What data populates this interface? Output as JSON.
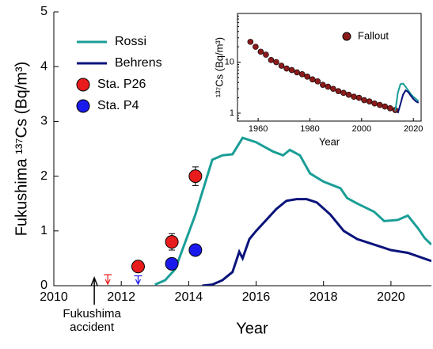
{
  "chart_data": [
    {
      "type": "line",
      "x_label": "Year",
      "y_label": "Fukushima ¹³⁷Cs (Bq/m³)",
      "xlim": [
        2010,
        2021.2
      ],
      "xticks": [
        2010,
        2012,
        2014,
        2016,
        2018,
        2020
      ],
      "ylim": [
        0,
        5
      ],
      "yticks": [
        0,
        1,
        2,
        3,
        4,
        5
      ],
      "annotation": {
        "lines": [
          "Fukushima",
          "accident"
        ],
        "x": 2011.2
      },
      "series": [
        {
          "name": "Rossi",
          "color": "#1a9e96",
          "x": [
            2013.0,
            2013.3,
            2013.6,
            2013.9,
            2014.2,
            2014.5,
            2014.7,
            2015.0,
            2015.3,
            2015.6,
            2016.0,
            2016.5,
            2016.8,
            2017.0,
            2017.3,
            2017.6,
            2018.0,
            2018.5,
            2018.7,
            2019.0,
            2019.5,
            2019.8,
            2020.2,
            2020.5,
            2020.8,
            2021.0,
            2021.2
          ],
          "values": [
            0.02,
            0.1,
            0.3,
            0.8,
            1.3,
            1.9,
            2.3,
            2.38,
            2.4,
            2.7,
            2.62,
            2.45,
            2.38,
            2.48,
            2.38,
            2.05,
            1.9,
            1.78,
            1.6,
            1.5,
            1.35,
            1.18,
            1.2,
            1.28,
            1.05,
            0.87,
            0.75
          ]
        },
        {
          "name": "Behrens",
          "color": "#0a137a",
          "x": [
            2014.4,
            2014.7,
            2015.0,
            2015.3,
            2015.5,
            2015.6,
            2015.8,
            2016.0,
            2016.3,
            2016.6,
            2016.9,
            2017.2,
            2017.5,
            2017.8,
            2018.2,
            2018.6,
            2019.0,
            2019.5,
            2020.0,
            2020.5,
            2021.2
          ],
          "values": [
            0,
            0.02,
            0.1,
            0.25,
            0.62,
            0.5,
            0.85,
            1.0,
            1.2,
            1.4,
            1.55,
            1.58,
            1.58,
            1.52,
            1.3,
            1.0,
            0.85,
            0.75,
            0.65,
            0.6,
            0.45
          ]
        },
        {
          "name": "Sta. P26",
          "color": "#e81c1c",
          "marker": true,
          "x": [
            2012.5,
            2013.5,
            2014.2
          ],
          "values": [
            0.35,
            0.8,
            2.0
          ],
          "errors": [
            0.03,
            0.15,
            0.17
          ],
          "upper_limit": {
            "x": 2011.6,
            "value": 0.2
          }
        },
        {
          "name": "Sta. P4",
          "color": "#1a1aee",
          "marker": true,
          "x": [
            2013.5,
            2014.2
          ],
          "values": [
            0.4,
            0.65
          ],
          "errors": [
            0.05,
            0.1
          ],
          "upper_limit": {
            "x": 2012.5,
            "value": 0.18
          }
        }
      ]
    },
    {
      "type": "line",
      "x_label": "Year",
      "y_label": "¹³⁷Cs (Bq/m³)",
      "xlim": [
        1952,
        2023
      ],
      "xticks": [
        1960,
        1980,
        2000,
        2020
      ],
      "ylim": [
        0.7,
        90
      ],
      "log_y": true,
      "yticks": [
        1,
        10
      ],
      "series": [
        {
          "name": "Fallout",
          "color": "#8b1a1a",
          "marker": true,
          "x": [
            1957,
            1959,
            1961,
            1963,
            1965,
            1967,
            1969,
            1971,
            1973,
            1975,
            1977,
            1979,
            1981,
            1983,
            1985,
            1987,
            1989,
            1991,
            1993,
            1995,
            1997,
            1999,
            2001,
            2003,
            2005,
            2007,
            2009,
            2011,
            2013
          ],
          "values": [
            25,
            20,
            16,
            14,
            11,
            10,
            8.5,
            7.5,
            7,
            6.3,
            5.8,
            5.2,
            4.6,
            4.2,
            3.6,
            3.3,
            3.0,
            2.7,
            2.5,
            2.3,
            2.1,
            2.0,
            1.8,
            1.7,
            1.55,
            1.45,
            1.35,
            1.25,
            1.15
          ]
        },
        {
          "color": "#1a9e96",
          "x": [
            2013,
            2014,
            2015,
            2016,
            2017,
            2018,
            2019,
            2020,
            2021,
            2022
          ],
          "values": [
            1.1,
            2.5,
            3.7,
            3.8,
            3.3,
            2.8,
            2.4,
            2.1,
            1.9,
            1.7
          ]
        },
        {
          "color": "#0a137a",
          "x": [
            2014,
            2015,
            2016,
            2017,
            2018,
            2019,
            2020,
            2021,
            2022
          ],
          "values": [
            1.0,
            1.5,
            2.3,
            2.8,
            2.6,
            2.2,
            1.9,
            1.7,
            1.6
          ]
        }
      ]
    }
  ]
}
